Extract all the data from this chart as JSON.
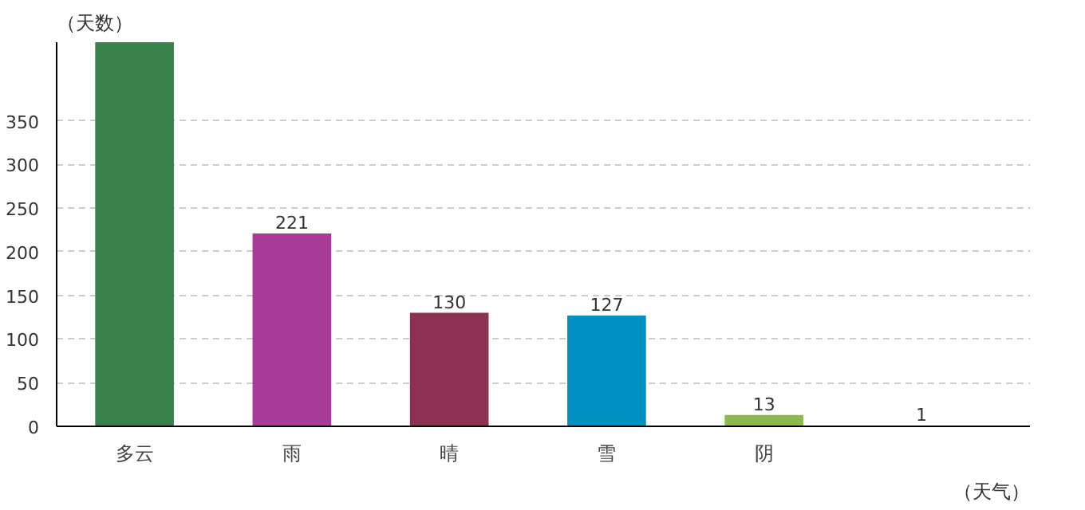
{
  "chart_data": {
    "type": "bar",
    "xlabel": "（天气）",
    "ylabel": "（天数）",
    "categories": [
      "多云",
      "雨",
      "晴",
      "雪",
      "阴",
      null
    ],
    "values": [
      440,
      221,
      130,
      127,
      13,
      1
    ],
    "colors": [
      "#38814a",
      "#a83a98",
      "#8c3154",
      "#0091c1",
      "#8fba4b",
      "#1f6a66"
    ],
    "value_labels": [
      null,
      "221",
      "130",
      "127",
      "13",
      "1"
    ],
    "ylim": [
      0,
      440
    ],
    "yticks": [
      0,
      50,
      100,
      150,
      200,
      250,
      300,
      350
    ],
    "grid": "y"
  }
}
